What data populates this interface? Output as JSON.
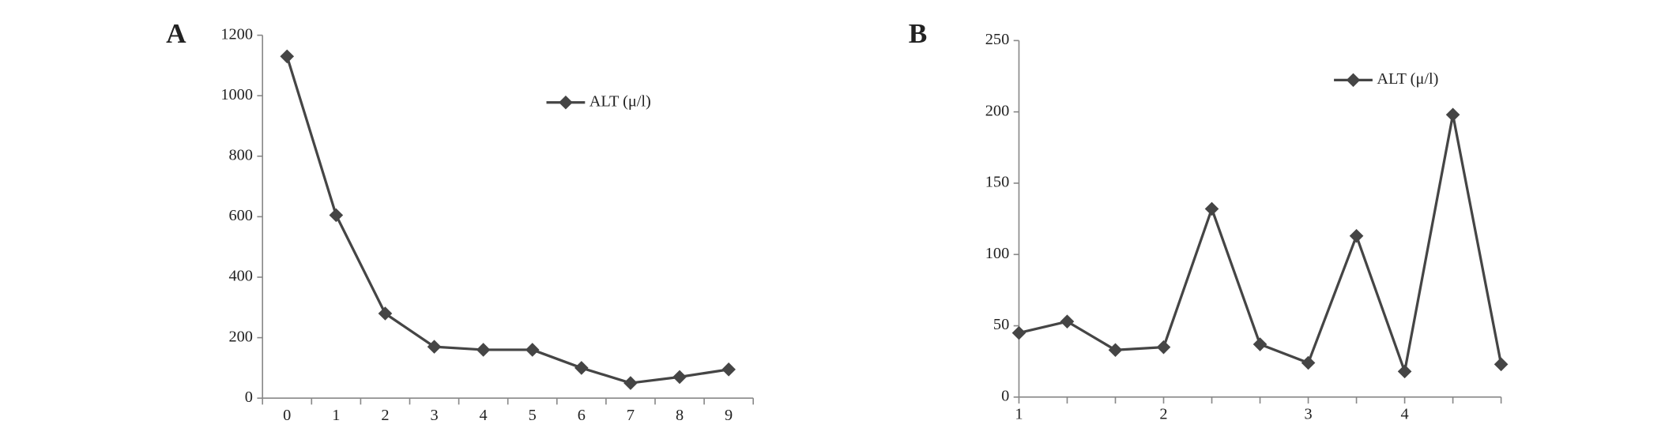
{
  "chart_data": [
    {
      "type": "line",
      "label": "A",
      "categories": [
        "0",
        "1",
        "2",
        "3",
        "4",
        "5",
        "6",
        "7",
        "8",
        "9"
      ],
      "series": [
        {
          "name": "ALT (μ/l)",
          "color": "#454545",
          "values": [
            1130,
            605,
            280,
            170,
            160,
            160,
            100,
            50,
            70,
            95
          ]
        }
      ],
      "ylim": [
        0,
        1200
      ],
      "yticks": [
        0,
        200,
        400,
        600,
        800,
        1000,
        1200
      ]
    },
    {
      "type": "line",
      "label": "B",
      "categories": [
        "1",
        null,
        null,
        "2",
        null,
        null,
        "3",
        null,
        "4",
        null,
        null
      ],
      "series": [
        {
          "name": "ALT (μ/l)",
          "color": "#454545",
          "values": [
            45,
            53,
            33,
            35,
            132,
            37,
            24,
            113,
            18,
            198,
            23
          ]
        }
      ],
      "ylim": [
        0,
        250
      ],
      "yticks": [
        0,
        50,
        100,
        150,
        200,
        250
      ]
    }
  ]
}
